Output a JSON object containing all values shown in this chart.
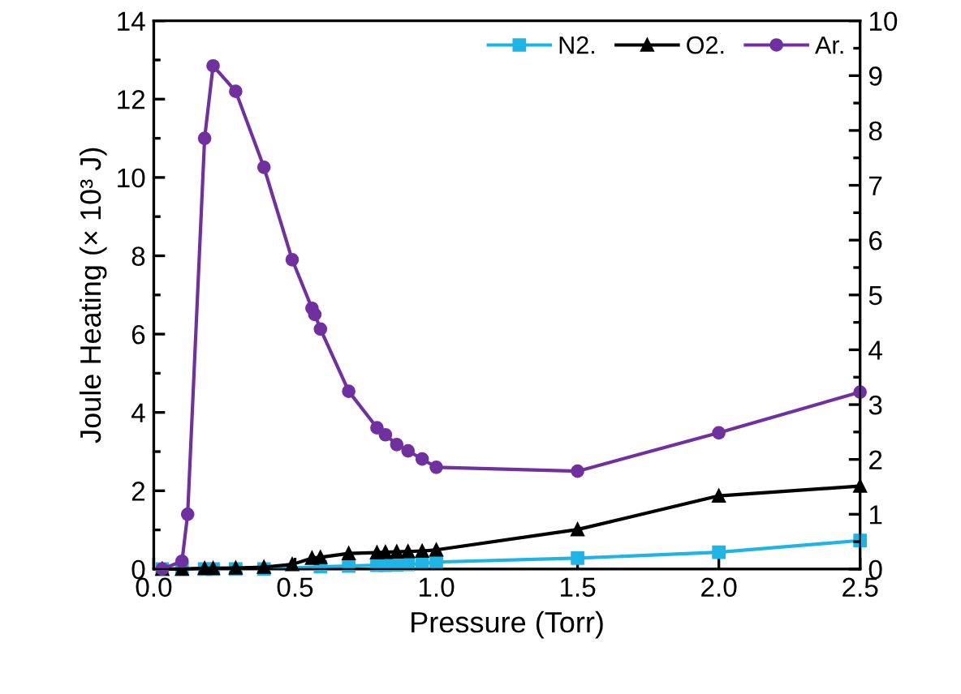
{
  "chart_data": {
    "type": "line",
    "xlabel": "Pressure (Torr)",
    "ylabel": "Joule Heating (× 10³ J)",
    "xlim": [
      0,
      2.5
    ],
    "xticks": [
      {
        "value": 0,
        "label": "0.0"
      },
      {
        "value": 0.5,
        "label": "0.5"
      },
      {
        "value": 1,
        "label": "1.0"
      },
      {
        "value": 1.5,
        "label": "1.5"
      },
      {
        "value": 2,
        "label": "2.0"
      },
      {
        "value": 2.5,
        "label": "2.5"
      }
    ],
    "ylim": [
      0,
      14
    ],
    "yticks": [
      0,
      2,
      4,
      6,
      8,
      10,
      12,
      14
    ],
    "y2lim": [
      0,
      10
    ],
    "y2ticks": [
      0,
      1,
      2,
      3,
      4,
      5,
      6,
      7,
      8,
      9,
      10
    ],
    "grid": false,
    "legend": "top right",
    "line_style": "solid",
    "series": [
      {
        "name": "N2.",
        "color": "#1fb4e6",
        "marker": "square",
        "x": [
          0.03,
          0.1,
          0.18,
          0.21,
          0.29,
          0.39,
          0.59,
          0.69,
          0.79,
          0.82,
          0.86,
          0.9,
          0.95,
          1.0,
          1.5,
          2.0,
          2.5
        ],
        "values": [
          0,
          0,
          0,
          0,
          0,
          0,
          0.06,
          0.08,
          0.1,
          0.1,
          0.11,
          0.12,
          0.14,
          0.18,
          0.28,
          0.43,
          0.73
        ]
      },
      {
        "name": "O2.",
        "color": "#000000",
        "marker": "triangle",
        "x": [
          0.03,
          0.1,
          0.18,
          0.21,
          0.29,
          0.39,
          0.49,
          0.56,
          0.59,
          0.69,
          0.79,
          0.82,
          0.86,
          0.9,
          0.95,
          1.0,
          1.5,
          2.0,
          2.5
        ],
        "values": [
          0,
          0,
          0.02,
          0.02,
          0.03,
          0.05,
          0.12,
          0.28,
          0.3,
          0.4,
          0.42,
          0.43,
          0.44,
          0.45,
          0.46,
          0.49,
          1.01,
          1.87,
          2.12
        ]
      },
      {
        "name": "Ar.",
        "color": "#7030a0",
        "marker": "circle",
        "x": [
          0.03,
          0.1,
          0.12,
          0.18,
          0.21,
          0.29,
          0.39,
          0.49,
          0.56,
          0.57,
          0.59,
          0.69,
          0.79,
          0.82,
          0.86,
          0.9,
          0.95,
          1.0,
          1.5,
          2.0,
          2.5
        ],
        "values": [
          0,
          0.2,
          1.4,
          11.0,
          12.85,
          12.2,
          10.26,
          7.9,
          6.66,
          6.5,
          6.13,
          4.54,
          3.61,
          3.43,
          3.18,
          3.02,
          2.81,
          2.6,
          2.5,
          3.48,
          4.52
        ]
      }
    ]
  }
}
